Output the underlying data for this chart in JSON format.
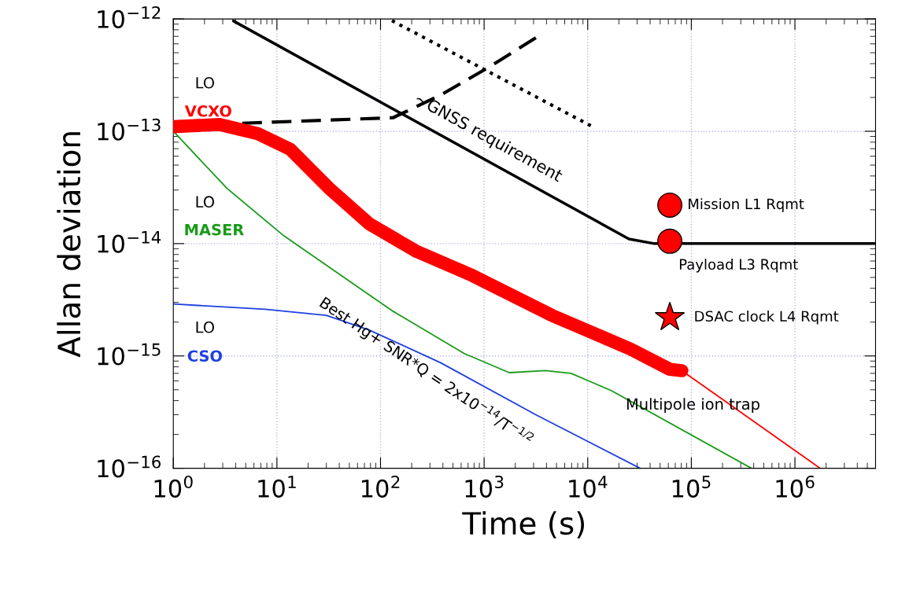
{
  "chart_data": {
    "type": "line",
    "xlabel": "Time (s)",
    "ylabel": "Allan deviation",
    "log": "xy",
    "grid": true,
    "xlim": [
      1,
      6000000
    ],
    "ylim": [
      1e-16,
      1e-12
    ],
    "xticks": [
      {
        "value": 1,
        "label": "10$^{0}$"
      },
      {
        "value": 10,
        "label": "10$^{1}$"
      },
      {
        "value": 100,
        "label": "10$^{2}$"
      },
      {
        "value": 1000,
        "label": "10$^{3}$"
      },
      {
        "value": 10000,
        "label": "10$^{4}$"
      },
      {
        "value": 100000,
        "label": "10$^{5}$"
      },
      {
        "value": 1000000,
        "label": "10$^{6}$"
      }
    ],
    "yticks": [
      {
        "value": 1e-16,
        "label": "10$^{−16}$"
      },
      {
        "value": 1e-15,
        "label": "10$^{−15}$"
      },
      {
        "value": 1e-14,
        "label": "10$^{−14}$"
      },
      {
        "value": 1e-13,
        "label": "10$^{−13}$"
      },
      {
        "value": 1e-12,
        "label": "10$^{−12}$"
      }
    ],
    "annotations": [
      "LO",
      "LO",
      "LO",
      "Best Hg+ SNR*Q = 2x10$^{−14}$/T$^{−1/2}$",
      "Multipole ion trap"
    ],
    "series": [
      {
        "name": "~GNSS requirement",
        "color": "#000000",
        "line_style": "solid",
        "x": [
          3.8,
          25000,
          44000,
          6000000
        ],
        "values": [
          9.6e-13,
          1.1e-14,
          1e-14,
          1e-14
        ]
      },
      {
        "color": "#000000",
        "line_style": "dashed",
        "x": [
          1,
          132,
          380,
          1100,
          3160
        ],
        "values": [
          1.12e-13,
          1.32e-13,
          2.1e-13,
          3.7e-13,
          6.8e-13
        ]
      },
      {
        "color": "#000000",
        "line_style": "dotted",
        "x": [
          120,
          10700
        ],
        "values": [
          1e-12,
          1.12e-13
        ]
      },
      {
        "name": "VCXO",
        "color": "#ff0000",
        "line_style": "solid",
        "x": [
          1,
          2.8,
          6.6,
          13.5,
          32,
          78,
          224,
          770,
          4500,
          26000,
          62000,
          81000
        ],
        "values": [
          1.1e-13,
          1.15e-13,
          9.5e-14,
          6.9e-14,
          3.1e-14,
          1.5e-14,
          8.5e-15,
          5.2e-15,
          2.3e-15,
          1.15e-15,
          7.6e-16,
          7.4e-16
        ]
      },
      {
        "color": "#ff0000",
        "line_style": "solid",
        "x": [
          81000,
          1750000
        ],
        "values": [
          7.4e-16,
          1e-16
        ]
      },
      {
        "name": "MASER",
        "color": "#1a9a1a",
        "line_style": "solid",
        "x": [
          1,
          3.3,
          11.7,
          132,
          645,
          1750,
          3900,
          6900,
          17000,
          380000
        ],
        "values": [
          1e-13,
          3.1e-14,
          1.17e-14,
          2.5e-15,
          1.05e-15,
          7.1e-16,
          7.4e-16,
          7e-16,
          4.9e-16,
          1e-16
        ]
      },
      {
        "name": "CSO",
        "color": "#1f3fe0",
        "line_style": "solid",
        "x": [
          1,
          7.7,
          30,
          78,
          380,
          3150,
          32000
        ],
        "values": [
          2.9e-15,
          2.6e-15,
          2.3e-15,
          1.7e-15,
          8.7e-16,
          3e-16,
          1e-16
        ]
      },
      {
        "name": "Mission L1 Rqmt",
        "type": "scatter",
        "marker": "circle",
        "color": "#ff0000",
        "x": [
          62000
        ],
        "values": [
          2.2e-14
        ]
      },
      {
        "name": "Payload L3 Rqmt",
        "type": "scatter",
        "marker": "circle",
        "color": "#ff0000",
        "x": [
          62000
        ],
        "values": [
          1.05e-14
        ]
      },
      {
        "name": "DSAC clock L4 Rqmt",
        "type": "scatter",
        "marker": "star",
        "color": "#ff0000",
        "x": [
          62000
        ],
        "values": [
          2.2e-15
        ]
      }
    ]
  }
}
